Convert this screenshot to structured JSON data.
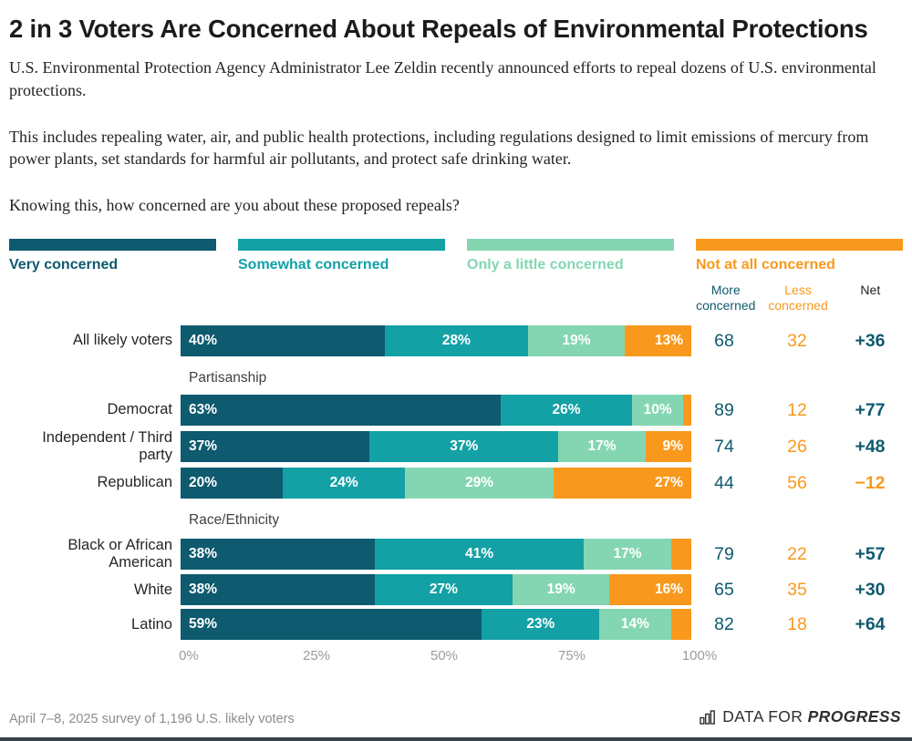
{
  "header": {
    "title": "2 in 3 Voters Are Concerned About Repeals of Environmental Protections",
    "paragraphs": [
      "U.S. Environmental Protection Agency Administrator Lee Zeldin recently announced efforts to repeal dozens of U.S. environmental protections.",
      "This includes repealing water, air, and public health protections, including regulations designed to limit emissions of mercury from power plants, set standards for harmful air pollutants, and protect safe drinking water.",
      "Knowing this, how concerned are you about these proposed repeals?"
    ]
  },
  "colors": {
    "very_concerned": "#0e5a6e",
    "somewhat_concerned": "#13a1a5",
    "little_concerned": "#84d6b2",
    "not_concerned": "#f8991d",
    "net_positive": "#0e5a6e",
    "net_negative": "#f8991d",
    "bottom_bar": "#37434c"
  },
  "chart_data": {
    "type": "bar",
    "variant": "horizontal-stacked",
    "xlim": [
      0,
      100
    ],
    "x_ticks": [
      "0%",
      "25%",
      "50%",
      "75%",
      "100%"
    ],
    "grid": false,
    "legend_position": "top",
    "min_label_value": 9,
    "series": [
      {
        "name": "Very concerned",
        "color": "#0e5a6e"
      },
      {
        "name": "Somewhat concerned",
        "color": "#13a1a5"
      },
      {
        "name": "Only a little concerned",
        "color": "#84d6b2"
      },
      {
        "name": "Not at all concerned",
        "color": "#f8991d"
      }
    ],
    "columns": {
      "more": "More concerned",
      "less": "Less concerned",
      "net": "Net"
    },
    "groups": [
      {
        "section": "",
        "rows": [
          {
            "label": "All likely voters",
            "values": [
              40,
              28,
              19,
              13
            ],
            "more": 68,
            "less": 32,
            "net": "+36"
          }
        ]
      },
      {
        "section": "Partisanship",
        "rows": [
          {
            "label": "Democrat",
            "values": [
              63,
              26,
              10,
              1
            ],
            "more": 89,
            "less": 12,
            "net": "+77"
          },
          {
            "label": "Independent / Third\nparty",
            "values": [
              37,
              37,
              17,
              9
            ],
            "more": 74,
            "less": 26,
            "net": "+48"
          },
          {
            "label": "Republican",
            "values": [
              20,
              24,
              29,
              27
            ],
            "more": 44,
            "less": 56,
            "net": "−12"
          }
        ]
      },
      {
        "section": "Race/Ethnicity",
        "rows": [
          {
            "label": "Black or African\nAmerican",
            "values": [
              38,
              41,
              17,
              4
            ],
            "more": 79,
            "less": 22,
            "net": "+57"
          },
          {
            "label": "White",
            "values": [
              38,
              27,
              19,
              16
            ],
            "more": 65,
            "less": 35,
            "net": "+30"
          },
          {
            "label": "Latino",
            "values": [
              59,
              23,
              14,
              4
            ],
            "more": 82,
            "less": 18,
            "net": "+64"
          }
        ]
      }
    ]
  },
  "footer": {
    "note": "April 7–8, 2025 survey of 1,196 U.S. likely voters",
    "logo_prefix": "DATA FOR",
    "logo_suffix": "PROGRESS"
  }
}
